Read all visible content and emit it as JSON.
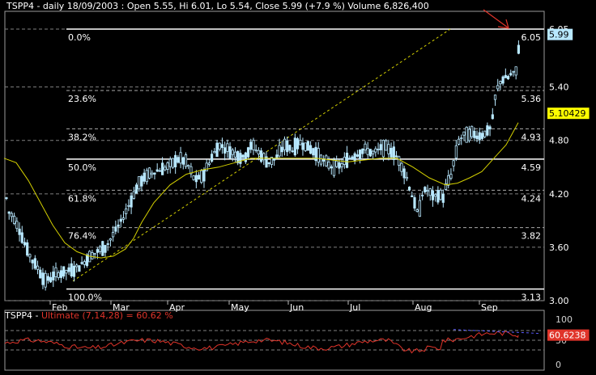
{
  "header": {
    "text": "TSPP4 - daily 18/09/2003 : Open 5.55, Hi 6.01, Lo 5.54, Close 5.99 (+7.9 %) Volume 6,826,400"
  },
  "oscillator": {
    "ticker": "TSPP4 - ",
    "label": "Ultimate (7,14,28) = 60.62 %",
    "y_ticks": [
      "100",
      "50",
      "0"
    ],
    "current_value": "60.6238",
    "colors": {
      "line": "#e0342a",
      "divergence": "#5a5aff",
      "axis_label": "#d0d0d0"
    }
  },
  "chart_data": {
    "type": "candlestick",
    "title": "TSPP4 - daily 18/09/2003 : Open 5.55, Hi 6.01, Lo 5.54, Close 5.99 (+7.9 %) Volume 6,826,400",
    "x_tick_labels": [
      "Feb",
      "Mar",
      "Apr",
      "May",
      "Jun",
      "Jul",
      "Aug",
      "Sep"
    ],
    "y_tick_labels": [
      "6.05",
      "5.40",
      "4.80",
      "4.20",
      "3.60",
      "3.00"
    ],
    "ylim": [
      3.0,
      6.25
    ],
    "price_anchors": [
      [
        0,
        4.8
      ],
      [
        4,
        4.45
      ],
      [
        10,
        4.0
      ],
      [
        16,
        3.95
      ],
      [
        24,
        3.8
      ],
      [
        32,
        3.6
      ],
      [
        40,
        3.45
      ],
      [
        48,
        3.35
      ],
      [
        55,
        3.22
      ],
      [
        62,
        3.25
      ],
      [
        70,
        3.3
      ],
      [
        80,
        3.32
      ],
      [
        90,
        3.35
      ],
      [
        100,
        3.4
      ],
      [
        110,
        3.5
      ],
      [
        120,
        3.55
      ],
      [
        130,
        3.6
      ],
      [
        140,
        3.75
      ],
      [
        150,
        3.9
      ],
      [
        160,
        4.1
      ],
      [
        170,
        4.3
      ],
      [
        180,
        4.4
      ],
      [
        190,
        4.45
      ],
      [
        200,
        4.48
      ],
      [
        210,
        4.52
      ],
      [
        220,
        4.6
      ],
      [
        230,
        4.55
      ],
      [
        240,
        4.35
      ],
      [
        250,
        4.4
      ],
      [
        260,
        4.6
      ],
      [
        270,
        4.75
      ],
      [
        280,
        4.7
      ],
      [
        290,
        4.65
      ],
      [
        300,
        4.6
      ],
      [
        310,
        4.75
      ],
      [
        320,
        4.65
      ],
      [
        330,
        4.55
      ],
      [
        340,
        4.6
      ],
      [
        350,
        4.75
      ],
      [
        360,
        4.7
      ],
      [
        370,
        4.78
      ],
      [
        380,
        4.72
      ],
      [
        390,
        4.65
      ],
      [
        400,
        4.55
      ],
      [
        410,
        4.5
      ],
      [
        420,
        4.52
      ],
      [
        430,
        4.6
      ],
      [
        440,
        4.65
      ],
      [
        450,
        4.7
      ],
      [
        460,
        4.65
      ],
      [
        470,
        4.72
      ],
      [
        480,
        4.7
      ],
      [
        490,
        4.6
      ],
      [
        500,
        4.4
      ],
      [
        505,
        4.25
      ],
      [
        510,
        4.1
      ],
      [
        515,
        3.95
      ],
      [
        520,
        4.2
      ],
      [
        525,
        4.25
      ],
      [
        530,
        4.2
      ],
      [
        535,
        4.15
      ],
      [
        540,
        4.2
      ],
      [
        545,
        4.15
      ],
      [
        550,
        4.3
      ],
      [
        555,
        4.4
      ],
      [
        560,
        4.6
      ],
      [
        565,
        4.8
      ],
      [
        570,
        4.85
      ],
      [
        580,
        4.88
      ],
      [
        590,
        4.85
      ],
      [
        600,
        4.9
      ],
      [
        605,
        4.95
      ],
      [
        610,
        5.3
      ],
      [
        615,
        5.45
      ],
      [
        620,
        5.5
      ],
      [
        625,
        5.5
      ],
      [
        630,
        5.55
      ],
      [
        635,
        5.55
      ],
      [
        640,
        5.98
      ]
    ],
    "moving_average": [
      [
        5,
        4.6
      ],
      [
        20,
        4.55
      ],
      [
        35,
        4.35
      ],
      [
        50,
        4.1
      ],
      [
        65,
        3.85
      ],
      [
        80,
        3.65
      ],
      [
        95,
        3.55
      ],
      [
        110,
        3.5
      ],
      [
        125,
        3.48
      ],
      [
        140,
        3.5
      ],
      [
        155,
        3.58
      ],
      [
        165,
        3.7
      ],
      [
        175,
        3.88
      ],
      [
        190,
        4.1
      ],
      [
        210,
        4.3
      ],
      [
        230,
        4.42
      ],
      [
        250,
        4.47
      ],
      [
        270,
        4.5
      ],
      [
        290,
        4.55
      ],
      [
        310,
        4.6
      ],
      [
        330,
        4.6
      ],
      [
        350,
        4.6
      ],
      [
        370,
        4.6
      ],
      [
        390,
        4.6
      ],
      [
        410,
        4.58
      ],
      [
        430,
        4.56
      ],
      [
        450,
        4.58
      ],
      [
        470,
        4.6
      ],
      [
        490,
        4.6
      ],
      [
        510,
        4.5
      ],
      [
        530,
        4.38
      ],
      [
        550,
        4.3
      ],
      [
        565,
        4.32
      ],
      [
        580,
        4.38
      ],
      [
        595,
        4.45
      ],
      [
        605,
        4.55
      ],
      [
        615,
        4.65
      ],
      [
        625,
        4.75
      ],
      [
        640,
        5.0
      ]
    ],
    "fibonacci": [
      {
        "label": "0.0%",
        "value": "6.05"
      },
      {
        "label": "23.6%",
        "value": "5.36"
      },
      {
        "label": "38.2%",
        "value": "4.93"
      },
      {
        "label": "50.0%",
        "value": "4.59"
      },
      {
        "label": "61.8%",
        "value": "4.24"
      },
      {
        "label": "76.4%",
        "value": "3.82"
      },
      {
        "label": "100.0%",
        "value": "3.13"
      }
    ],
    "price_tags": [
      {
        "value": "5.99",
        "color": "#b8e8ff"
      },
      {
        "value": "5.10429",
        "color": "#ffff00"
      }
    ],
    "colors": {
      "candles": "#b8e8ff",
      "moving_average": "#d4d000",
      "trendline": "#d4d000",
      "fib_line": "#ffffff",
      "arrow": "#e0342a",
      "grid": "#808080"
    }
  }
}
